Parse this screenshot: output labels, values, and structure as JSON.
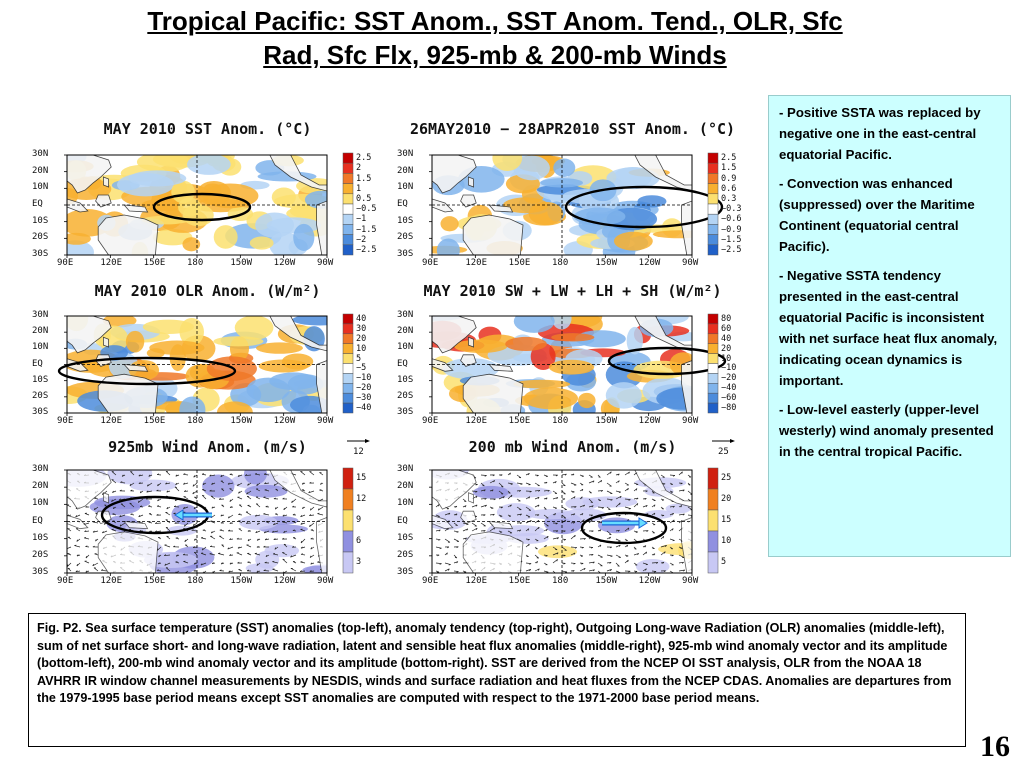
{
  "slide": {
    "title_line1": "Tropical Pacific: SST Anom., SST Anom. Tend., OLR, Sfc",
    "title_line2": "Rad, Sfc Flx, 925-mb & 200-mb Winds",
    "page_number": "16"
  },
  "axes": {
    "lat_labels": [
      "30N",
      "20N",
      "10N",
      "EQ",
      "10S",
      "20S",
      "30S"
    ],
    "lon_labels": [
      "90E",
      "120E",
      "150E",
      "180",
      "150W",
      "120W",
      "90W"
    ]
  },
  "panels": [
    {
      "id": "sst",
      "title": "MAY 2010 SST Anom. (°C)",
      "colorbar": [
        "2.5",
        "2",
        "1.5",
        "1",
        "0.5",
        "−0.5",
        "−1",
        "−1.5",
        "−2",
        "−2.5"
      ],
      "colors": [
        "#c40000",
        "#e83020",
        "#f07828",
        "#f8b030",
        "#fce070",
        "#ffffff",
        "#b4d4f4",
        "#80b4ec",
        "#4c8cdc",
        "#2060c8"
      ]
    },
    {
      "id": "sst-tend",
      "title": "26MAY2010 − 28APR2010 SST Anom. (°C)",
      "colorbar": [
        "2.5",
        "1.5",
        "0.9",
        "0.6",
        "0.3",
        "−0.3",
        "−0.6",
        "−0.9",
        "−1.5",
        "−2.5"
      ],
      "colors": [
        "#c40000",
        "#e83020",
        "#f07828",
        "#f8b030",
        "#fce070",
        "#ffffff",
        "#b4d4f4",
        "#80b4ec",
        "#4c8cdc",
        "#2060c8"
      ]
    },
    {
      "id": "olr",
      "title": "MAY 2010 OLR Anom. (W/m²)",
      "colorbar": [
        "40",
        "30",
        "20",
        "10",
        "5",
        "−5",
        "−10",
        "−20",
        "−30",
        "−40"
      ],
      "colors": [
        "#c40000",
        "#e83020",
        "#f07828",
        "#f8b030",
        "#fce070",
        "#ffffff",
        "#b4d4f4",
        "#80b4ec",
        "#4c8cdc",
        "#2060c8"
      ]
    },
    {
      "id": "flux",
      "title": "MAY 2010 SW + LW + LH + SH (W/m²)",
      "colorbar": [
        "80",
        "60",
        "40",
        "20",
        "10",
        "−10",
        "−20",
        "−40",
        "−60",
        "−80"
      ],
      "colors": [
        "#c40000",
        "#e83020",
        "#f07828",
        "#f8b030",
        "#fce070",
        "#ffffff",
        "#b4d4f4",
        "#80b4ec",
        "#4c8cdc",
        "#2060c8"
      ]
    },
    {
      "id": "wind925",
      "title": "925mb Wind Anom. (m/s)",
      "ref_vector": "12",
      "colorbar": [
        "15",
        "12",
        "9",
        "6",
        "3"
      ],
      "colors": [
        "#d02010",
        "#f08020",
        "#fce070",
        "#9090e0",
        "#c8c8f4"
      ]
    },
    {
      "id": "wind200",
      "title": "200 mb Wind Anom. (m/s)",
      "ref_vector": "25",
      "colorbar": [
        "25",
        "20",
        "15",
        "10",
        "5"
      ],
      "colors": [
        "#d02010",
        "#f08020",
        "#fce070",
        "#9090e0",
        "#c8c8f4"
      ]
    }
  ],
  "summary": [
    "- Positive SSTA was replaced by negative one in the east-central equatorial Pacific.",
    "-  Convection was enhanced (suppressed) over the Maritime Continent (equatorial central Pacific).",
    "-  Negative SSTA tendency presented  in the east-central equatorial Pacific is inconsistent with net surface heat flux anomaly, indicating ocean dynamics is important.",
    "- Low-level easterly (upper-level westerly) wind anomaly presented in the central tropical Pacific."
  ],
  "caption": "Fig. P2. Sea surface temperature (SST) anomalies (top-left), anomaly tendency (top-right), Outgoing Long-wave Radiation (OLR) anomalies (middle-left), sum of net surface short- and long-wave radiation, latent and sensible heat flux anomalies (middle-right), 925-mb wind anomaly vector and its amplitude (bottom-left), 200-mb wind anomaly vector and its amplitude  (bottom-right). SST are derived from the NCEP OI SST analysis, OLR from the NOAA 18 AVHRR IR window channel measurements by NESDIS, winds and surface radiation and heat fluxes from the NCEP CDAS. Anomalies are  departures from the 1979-1995 base period means except SST anomalies are computed with respect to the 1971-2000 base period means."
}
